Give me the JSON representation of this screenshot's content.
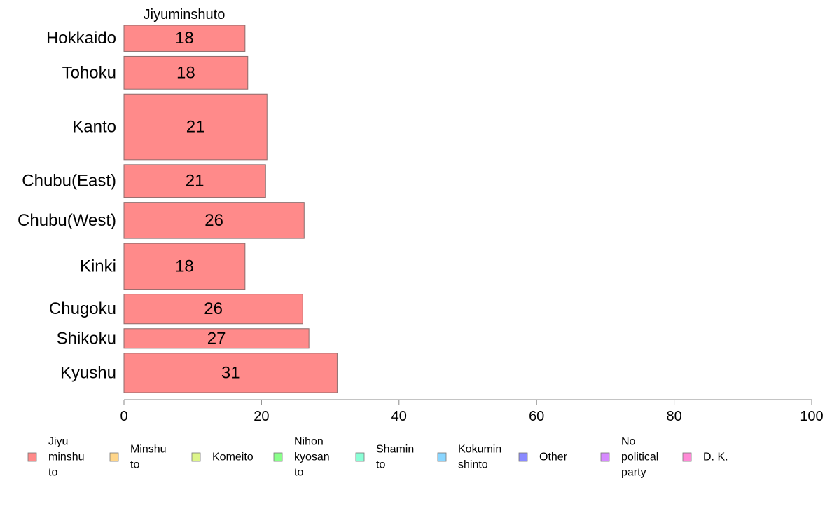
{
  "chart_data": {
    "type": "bar",
    "orientation": "horizontal",
    "panel_title": "Jiyuminshuto",
    "categories": [
      "Hokkaido",
      "Tohoku",
      "Kanto",
      "Chubu(East)",
      "Chubu(West)",
      "Kinki",
      "Chugoku",
      "Shikoku",
      "Kyushu"
    ],
    "values": [
      18,
      18,
      21,
      21,
      26,
      18,
      26,
      27,
      31
    ],
    "plotted_values": [
      17.6,
      18.0,
      20.8,
      20.6,
      26.2,
      17.6,
      26.0,
      26.9,
      31.0
    ],
    "bar_weights": [
      0.8,
      1.0,
      2.0,
      1.0,
      1.1,
      1.4,
      0.9,
      0.6,
      1.2
    ],
    "xlim": [
      0,
      100
    ],
    "xticks": [
      0,
      20,
      40,
      60,
      80,
      100
    ],
    "series_color": "#ff8a8a",
    "legend": {
      "placement": "bottom",
      "items": [
        {
          "label": "Jiyu minshu to",
          "color": "#ff8a8a"
        },
        {
          "label": "Minshu to",
          "color": "#ffd68a"
        },
        {
          "label": "Komeito",
          "color": "#ddf58a"
        },
        {
          "label": "Nihon kyosan to",
          "color": "#8aff8a"
        },
        {
          "label": "Shamin to",
          "color": "#8affd6"
        },
        {
          "label": "Kokumin shinto",
          "color": "#8ad6ff"
        },
        {
          "label": "Other",
          "color": "#8a8aff"
        },
        {
          "label": "No political party",
          "color": "#d68aff"
        },
        {
          "label": "D. K.",
          "color": "#ff8ad6"
        }
      ]
    }
  }
}
